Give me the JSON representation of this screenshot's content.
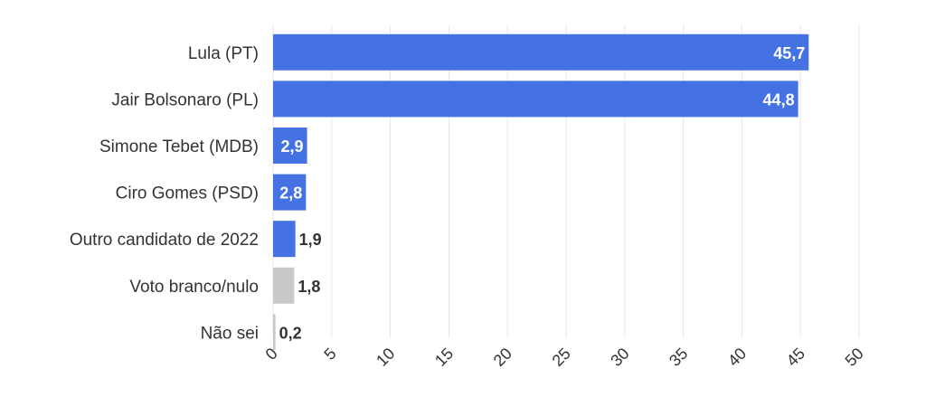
{
  "chart_data": {
    "type": "bar",
    "orientation": "horizontal",
    "title": "",
    "xlabel": "",
    "ylabel": "",
    "categories": [
      "Lula (PT)",
      "Jair Bolsonaro (PL)",
      "Simone Tebet (MDB)",
      "Ciro Gomes (PSD)",
      "Outro candidato de 2022",
      "Voto branco/nulo",
      "Não sei"
    ],
    "values": [
      45.7,
      44.8,
      2.9,
      2.8,
      1.9,
      1.8,
      0.2
    ],
    "value_labels": [
      "45,7",
      "44,8",
      "2,9",
      "2,8",
      "1,9",
      "1,8",
      "0,2"
    ],
    "bar_colors": [
      "#4472e3",
      "#4472e3",
      "#4472e3",
      "#4472e3",
      "#4472e3",
      "#c8c8c8",
      "#c8c8c8"
    ],
    "xlim": [
      0,
      50
    ],
    "ticks": [
      "0",
      "5",
      "10",
      "15",
      "20",
      "25",
      "30",
      "35",
      "40",
      "45",
      "50"
    ],
    "grid": true,
    "legend": "none"
  }
}
